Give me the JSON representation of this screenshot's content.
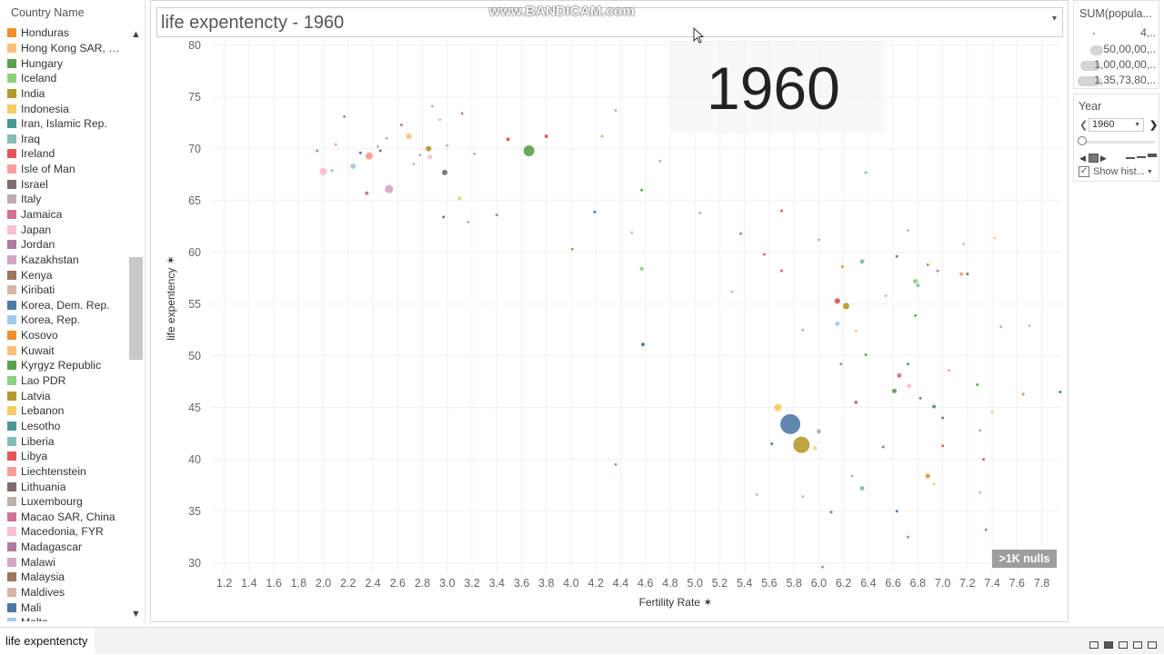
{
  "legend": {
    "title": "Country Name",
    "scroll_up": "▲",
    "scroll_down": "▼",
    "items": [
      {
        "label": "Honduras",
        "color": "#f28e2b"
      },
      {
        "label": "Hong Kong SAR, Ch..",
        "color": "#ffbe7d"
      },
      {
        "label": "Hungary",
        "color": "#59a14f"
      },
      {
        "label": "Iceland",
        "color": "#8cd17d"
      },
      {
        "label": "India",
        "color": "#b6992d"
      },
      {
        "label": "Indonesia",
        "color": "#f1ce63"
      },
      {
        "label": "Iran, Islamic Rep.",
        "color": "#499894"
      },
      {
        "label": "Iraq",
        "color": "#86bcb6"
      },
      {
        "label": "Ireland",
        "color": "#e15759"
      },
      {
        "label": "Isle of Man",
        "color": "#ff9d9a"
      },
      {
        "label": "Israel",
        "color": "#79706e"
      },
      {
        "label": "Italy",
        "color": "#bab0ac"
      },
      {
        "label": "Jamaica",
        "color": "#d37295"
      },
      {
        "label": "Japan",
        "color": "#fabfd2"
      },
      {
        "label": "Jordan",
        "color": "#b07aa1"
      },
      {
        "label": "Kazakhstan",
        "color": "#d4a6c8"
      },
      {
        "label": "Kenya",
        "color": "#9d7660"
      },
      {
        "label": "Kiribati",
        "color": "#d7b5a6"
      },
      {
        "label": "Korea, Dem. Rep.",
        "color": "#4e79a7"
      },
      {
        "label": "Korea, Rep.",
        "color": "#a0cbe8"
      },
      {
        "label": "Kosovo",
        "color": "#f28e2b"
      },
      {
        "label": "Kuwait",
        "color": "#ffbe7d"
      },
      {
        "label": "Kyrgyz Republic",
        "color": "#59a14f"
      },
      {
        "label": "Lao PDR",
        "color": "#8cd17d"
      },
      {
        "label": "Latvia",
        "color": "#b6992d"
      },
      {
        "label": "Lebanon",
        "color": "#f1ce63"
      },
      {
        "label": "Lesotho",
        "color": "#499894"
      },
      {
        "label": "Liberia",
        "color": "#86bcb6"
      },
      {
        "label": "Libya",
        "color": "#e15759"
      },
      {
        "label": "Liechtenstein",
        "color": "#ff9d9a"
      },
      {
        "label": "Lithuania",
        "color": "#79706e"
      },
      {
        "label": "Luxembourg",
        "color": "#bab0ac"
      },
      {
        "label": "Macao SAR, China",
        "color": "#d37295"
      },
      {
        "label": "Macedonia, FYR",
        "color": "#fabfd2"
      },
      {
        "label": "Madagascar",
        "color": "#b07aa1"
      },
      {
        "label": "Malawi",
        "color": "#d4a6c8"
      },
      {
        "label": "Malaysia",
        "color": "#9d7660"
      },
      {
        "label": "Maldives",
        "color": "#d7b5a6"
      },
      {
        "label": "Mali",
        "color": "#4e79a7"
      },
      {
        "label": "Malta",
        "color": "#a0cbe8"
      }
    ]
  },
  "header": {
    "title": "life expentencty - 1960",
    "dropdown_icon": "▾",
    "watermark": "www.BANDICAM.com"
  },
  "overlay": {
    "year_text": "1960"
  },
  "nulls_badge": ">1K nulls",
  "size_legend": {
    "title": "SUM(popula...",
    "entries": [
      "4,..",
      "50,00,00,..",
      "1,00,00,00,..",
      "1,35,73,80,.."
    ]
  },
  "year_filter": {
    "title": "Year",
    "value": "1960",
    "prev": "❮",
    "next": "❯",
    "show_history": "Show hist...",
    "checkbox": "✓"
  },
  "bottom": {
    "sheet_tab": "life expentencty"
  },
  "chart_data": {
    "type": "scatter",
    "title": "life expentencty - 1960",
    "xlabel": "Fertility Rate",
    "ylabel": "life expentency",
    "xlim": [
      1.1,
      7.95
    ],
    "ylim": [
      29,
      80.5
    ],
    "xticks": [
      "1.2",
      "1.4",
      "1.6",
      "1.8",
      "2.0",
      "2.2",
      "2.4",
      "2.6",
      "2.8",
      "3.0",
      "3.2",
      "3.4",
      "3.6",
      "3.8",
      "4.0",
      "4.2",
      "4.4",
      "4.6",
      "4.8",
      "5.0",
      "5.2",
      "5.4",
      "5.6",
      "5.8",
      "6.0",
      "6.2",
      "6.4",
      "6.6",
      "6.8",
      "7.0",
      "7.2",
      "7.4",
      "7.6",
      "7.8"
    ],
    "yticks": [
      "30",
      "35",
      "40",
      "45",
      "50",
      "55",
      "60",
      "65",
      "70",
      "75",
      "80"
    ],
    "grid": true,
    "points": [
      {
        "x": 5.77,
        "y": 43.4,
        "size": 11,
        "color": "#4e79a7"
      },
      {
        "x": 5.86,
        "y": 41.4,
        "size": 9,
        "color": "#b6992d"
      },
      {
        "x": 3.66,
        "y": 69.8,
        "size": 6,
        "color": "#59a14f"
      },
      {
        "x": 5.67,
        "y": 45.0,
        "size": 4,
        "color": "#f1ce63"
      },
      {
        "x": 2.53,
        "y": 66.1,
        "size": 4.5,
        "color": "#d4a6c8"
      },
      {
        "x": 2.0,
        "y": 67.8,
        "size": 4,
        "color": "#fabfd2"
      },
      {
        "x": 2.37,
        "y": 69.3,
        "size": 4,
        "color": "#ff9d9a"
      },
      {
        "x": 2.24,
        "y": 68.3,
        "size": 3,
        "color": "#a0cbe8"
      },
      {
        "x": 2.69,
        "y": 71.2,
        "size": 3,
        "color": "#ffbe7d"
      },
      {
        "x": 2.85,
        "y": 70.0,
        "size": 3,
        "color": "#b6992d"
      },
      {
        "x": 2.98,
        "y": 67.7,
        "size": 3,
        "color": "#79706e"
      },
      {
        "x": 2.86,
        "y": 69.2,
        "size": 2.5,
        "color": "#fabfd2"
      },
      {
        "x": 2.35,
        "y": 65.7,
        "size": 2,
        "color": "#b07aa1"
      },
      {
        "x": 3.1,
        "y": 65.2,
        "size": 2,
        "color": "#f1ce63"
      },
      {
        "x": 3.49,
        "y": 70.9,
        "size": 2,
        "color": "#e15759"
      },
      {
        "x": 3.8,
        "y": 71.2,
        "size": 2,
        "color": "#e15759"
      },
      {
        "x": 2.17,
        "y": 73.1,
        "size": 1.5,
        "color": "#b07aa1"
      },
      {
        "x": 3.12,
        "y": 73.4,
        "size": 1.5,
        "color": "#b07aa1"
      },
      {
        "x": 2.1,
        "y": 70.4,
        "size": 1.5,
        "color": "#ff9d9a"
      },
      {
        "x": 4.19,
        "y": 63.9,
        "size": 1.5,
        "color": "#4e79a7"
      },
      {
        "x": 4.57,
        "y": 58.4,
        "size": 2,
        "color": "#8cd17d"
      },
      {
        "x": 4.58,
        "y": 51.1,
        "size": 2,
        "color": "#4e79a7"
      },
      {
        "x": 6.15,
        "y": 55.3,
        "size": 3,
        "color": "#e15759"
      },
      {
        "x": 6.22,
        "y": 54.8,
        "size": 3.5,
        "color": "#b6992d"
      },
      {
        "x": 6.15,
        "y": 53.1,
        "size": 2.5,
        "color": "#a0cbe8"
      },
      {
        "x": 6.35,
        "y": 59.1,
        "size": 2.5,
        "color": "#86bcb6"
      },
      {
        "x": 6.78,
        "y": 57.2,
        "size": 2.5,
        "color": "#8cd17d"
      },
      {
        "x": 6.8,
        "y": 56.8,
        "size": 2,
        "color": "#86bcb6"
      },
      {
        "x": 7.15,
        "y": 57.9,
        "size": 2,
        "color": "#ff9d9a"
      },
      {
        "x": 6.0,
        "y": 42.7,
        "size": 2.5,
        "color": "#bab0ac"
      },
      {
        "x": 5.97,
        "y": 41.1,
        "size": 2,
        "color": "#f1ce63"
      },
      {
        "x": 6.3,
        "y": 45.5,
        "size": 2,
        "color": "#b07aa1"
      },
      {
        "x": 6.61,
        "y": 46.6,
        "size": 2.5,
        "color": "#59a14f"
      },
      {
        "x": 6.65,
        "y": 48.1,
        "size": 2.5,
        "color": "#d37295"
      },
      {
        "x": 6.73,
        "y": 47.1,
        "size": 2.5,
        "color": "#fabfd2"
      },
      {
        "x": 6.93,
        "y": 45.1,
        "size": 2,
        "color": "#499894"
      },
      {
        "x": 6.35,
        "y": 37.2,
        "size": 2.5,
        "color": "#86bcb6"
      },
      {
        "x": 6.88,
        "y": 38.4,
        "size": 2.5,
        "color": "#f28e2b"
      },
      {
        "x": 6.63,
        "y": 35.0,
        "size": 1.5,
        "color": "#4e79a7"
      },
      {
        "x": 7.0,
        "y": 41.3,
        "size": 1.5,
        "color": "#e15759"
      },
      {
        "x": 7.65,
        "y": 46.3,
        "size": 1.5,
        "color": "#f28e2b"
      },
      {
        "x": 7.95,
        "y": 46.5,
        "size": 1.5,
        "color": "#4e79a7"
      },
      {
        "x": 5.56,
        "y": 59.8,
        "size": 1.5,
        "color": "#e15759"
      },
      {
        "x": 6.19,
        "y": 58.6,
        "size": 1.5,
        "color": "#f28e2b"
      },
      {
        "x": 6.63,
        "y": 59.6,
        "size": 1.5,
        "color": "#79706e"
      },
      {
        "x": 6.96,
        "y": 58.2,
        "size": 1.5,
        "color": "#d37295"
      },
      {
        "x": 7.2,
        "y": 57.9,
        "size": 1.5,
        "color": "#79706e"
      },
      {
        "x": 5.3,
        "y": 56.2,
        "size": 1.5,
        "color": "#d7b5a6"
      },
      {
        "x": 5.7,
        "y": 58.2,
        "size": 1.5,
        "color": "#e15759"
      },
      {
        "x": 5.87,
        "y": 52.5,
        "size": 1.5,
        "color": "#d4a6c8"
      },
      {
        "x": 6.3,
        "y": 52.4,
        "size": 1.5,
        "color": "#ffbe7d"
      },
      {
        "x": 6.78,
        "y": 53.9,
        "size": 1.5,
        "color": "#59a14f"
      },
      {
        "x": 7.47,
        "y": 52.8,
        "size": 1.5,
        "color": "#d4a6c8"
      },
      {
        "x": 7.7,
        "y": 52.9,
        "size": 1.5,
        "color": "#d7b5a6"
      },
      {
        "x": 6.18,
        "y": 49.2,
        "size": 1.5,
        "color": "#b07aa1"
      },
      {
        "x": 6.38,
        "y": 50.1,
        "size": 1.5,
        "color": "#59a14f"
      },
      {
        "x": 6.72,
        "y": 49.2,
        "size": 1.5,
        "color": "#499894"
      },
      {
        "x": 7.05,
        "y": 48.6,
        "size": 1.5,
        "color": "#ff9d9a"
      },
      {
        "x": 7.28,
        "y": 47.2,
        "size": 1.5,
        "color": "#59a14f"
      },
      {
        "x": 6.82,
        "y": 45.9,
        "size": 1.5,
        "color": "#9d7660"
      },
      {
        "x": 7.0,
        "y": 44.0,
        "size": 1.5,
        "color": "#79706e"
      },
      {
        "x": 7.4,
        "y": 44.6,
        "size": 1.5,
        "color": "#ffbe7d"
      },
      {
        "x": 7.3,
        "y": 42.8,
        "size": 1.5,
        "color": "#bab0ac"
      },
      {
        "x": 6.52,
        "y": 41.2,
        "size": 1.5,
        "color": "#9d7660"
      },
      {
        "x": 6.27,
        "y": 38.4,
        "size": 1.5,
        "color": "#bab0ac"
      },
      {
        "x": 6.93,
        "y": 37.6,
        "size": 1.5,
        "color": "#f1ce63"
      },
      {
        "x": 7.3,
        "y": 36.8,
        "size": 1.5,
        "color": "#d7b5a6"
      },
      {
        "x": 7.33,
        "y": 40.0,
        "size": 1.5,
        "color": "#e15759"
      },
      {
        "x": 7.35,
        "y": 33.2,
        "size": 1.5,
        "color": "#b07aa1"
      },
      {
        "x": 6.72,
        "y": 32.5,
        "size": 1.5,
        "color": "#d37295"
      },
      {
        "x": 6.1,
        "y": 34.9,
        "size": 1.5,
        "color": "#9d7660"
      },
      {
        "x": 5.87,
        "y": 36.4,
        "size": 1.5,
        "color": "#d4a6c8"
      },
      {
        "x": 6.03,
        "y": 29.6,
        "size": 1.5,
        "color": "#d37295"
      },
      {
        "x": 5.5,
        "y": 36.6,
        "size": 1.5,
        "color": "#d7b5a6"
      },
      {
        "x": 5.62,
        "y": 41.5,
        "size": 1.5,
        "color": "#4e79a7"
      },
      {
        "x": 4.36,
        "y": 39.5,
        "size": 1.5,
        "color": "#b07aa1"
      },
      {
        "x": 5.37,
        "y": 61.8,
        "size": 1.5,
        "color": "#b07aa1"
      },
      {
        "x": 4.01,
        "y": 60.3,
        "size": 1.5,
        "color": "#b6992d"
      },
      {
        "x": 4.49,
        "y": 61.9,
        "size": 1.5,
        "color": "#d7b5a6"
      },
      {
        "x": 5.04,
        "y": 63.8,
        "size": 1.5,
        "color": "#bab0ac"
      },
      {
        "x": 3.4,
        "y": 63.6,
        "size": 1.5,
        "color": "#b07aa1"
      },
      {
        "x": 3.17,
        "y": 62.9,
        "size": 1.5,
        "color": "#bab0ac"
      },
      {
        "x": 2.97,
        "y": 63.4,
        "size": 1.5,
        "color": "#79706e"
      },
      {
        "x": 4.72,
        "y": 68.8,
        "size": 1.5,
        "color": "#bab0ac"
      },
      {
        "x": 4.25,
        "y": 71.2,
        "size": 1.5,
        "color": "#8cd17d"
      },
      {
        "x": 4.57,
        "y": 66.0,
        "size": 1.5,
        "color": "#59a14f"
      },
      {
        "x": 5.7,
        "y": 64.0,
        "size": 1.5,
        "color": "#e15759"
      },
      {
        "x": 6.38,
        "y": 67.7,
        "size": 1.5,
        "color": "#86bcb6"
      },
      {
        "x": 6.0,
        "y": 61.2,
        "size": 1.5,
        "color": "#bab0ac"
      },
      {
        "x": 6.72,
        "y": 62.1,
        "size": 1.5,
        "color": "#d7b5a6"
      },
      {
        "x": 7.17,
        "y": 60.8,
        "size": 1.5,
        "color": "#d7b5a6"
      },
      {
        "x": 7.42,
        "y": 61.4,
        "size": 1.5,
        "color": "#ffbe7d"
      },
      {
        "x": 6.88,
        "y": 58.8,
        "size": 1.5,
        "color": "#b6992d"
      },
      {
        "x": 6.54,
        "y": 55.8,
        "size": 1.5,
        "color": "#d7b5a6"
      },
      {
        "x": 2.63,
        "y": 72.3,
        "size": 1.5,
        "color": "#b07aa1"
      },
      {
        "x": 1.95,
        "y": 69.8,
        "size": 1.5,
        "color": "#b07aa1"
      },
      {
        "x": 2.44,
        "y": 70.2,
        "size": 1.5,
        "color": "#bab0ac"
      },
      {
        "x": 2.3,
        "y": 69.6,
        "size": 1.5,
        "color": "#4e79a7"
      },
      {
        "x": 2.46,
        "y": 69.8,
        "size": 1.5,
        "color": "#79706e"
      },
      {
        "x": 2.78,
        "y": 69.4,
        "size": 1.5,
        "color": "#bab0ac"
      },
      {
        "x": 2.73,
        "y": 68.5,
        "size": 1.5,
        "color": "#d7b5a6"
      },
      {
        "x": 2.51,
        "y": 71.0,
        "size": 1.5,
        "color": "#bab0ac"
      },
      {
        "x": 2.94,
        "y": 72.8,
        "size": 1.5,
        "color": "#d7b5a6"
      },
      {
        "x": 3.0,
        "y": 70.3,
        "size": 1.5,
        "color": "#bab0ac"
      },
      {
        "x": 2.88,
        "y": 74.1,
        "size": 1.5,
        "color": "#bab0ac"
      },
      {
        "x": 4.36,
        "y": 73.7,
        "size": 1.5,
        "color": "#bab0ac"
      },
      {
        "x": 3.22,
        "y": 69.5,
        "size": 1.5,
        "color": "#bab0ac"
      },
      {
        "x": 2.07,
        "y": 67.9,
        "size": 1.5,
        "color": "#bab0ac"
      }
    ]
  }
}
